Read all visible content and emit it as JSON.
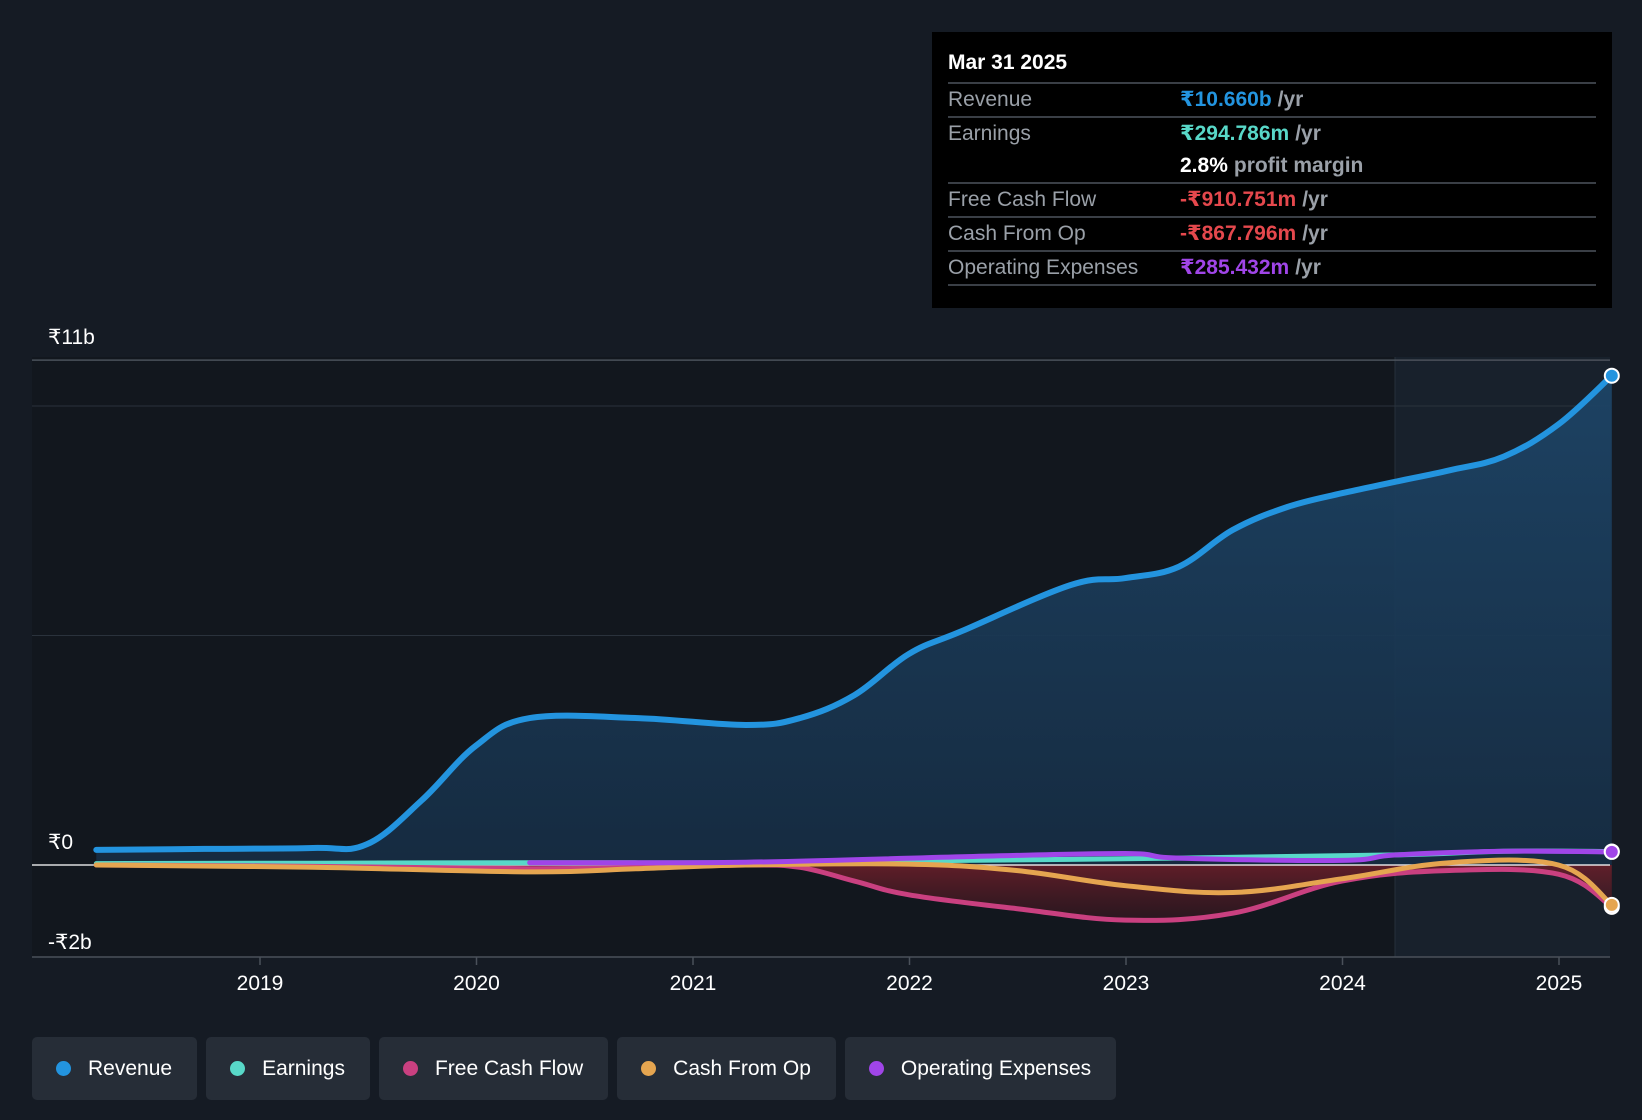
{
  "chart_data": {
    "type": "line",
    "y_ticks": [
      "₹11b",
      "₹0",
      "-₹2b"
    ],
    "x_ticks": [
      "2019",
      "2020",
      "2021",
      "2022",
      "2023",
      "2024",
      "2025"
    ],
    "ylim": [
      -2,
      11
    ],
    "series": [
      {
        "name": "Revenue",
        "color": "#2394df",
        "points": [
          [
            "2018-03-31",
            0.33
          ],
          [
            "2018-09-30",
            0.35
          ],
          [
            "2019-03-31",
            0.37
          ],
          [
            "2019-06-30",
            0.45
          ],
          [
            "2019-09-30",
            1.4
          ],
          [
            "2019-12-31",
            2.6
          ],
          [
            "2020-03-31",
            3.2
          ],
          [
            "2020-09-30",
            3.2
          ],
          [
            "2021-03-31",
            3.05
          ],
          [
            "2021-06-30",
            3.2
          ],
          [
            "2021-09-30",
            3.7
          ],
          [
            "2021-12-31",
            4.6
          ],
          [
            "2022-03-31",
            5.1
          ],
          [
            "2022-09-30",
            6.1
          ],
          [
            "2022-12-31",
            6.25
          ],
          [
            "2023-03-31",
            6.5
          ],
          [
            "2023-06-30",
            7.3
          ],
          [
            "2023-09-30",
            7.8
          ],
          [
            "2023-12-31",
            8.1
          ],
          [
            "2024-03-31",
            8.35
          ],
          [
            "2024-06-30",
            8.6
          ],
          [
            "2024-09-30",
            8.9
          ],
          [
            "2024-12-31",
            9.6
          ],
          [
            "2025-03-31",
            10.66
          ]
        ]
      },
      {
        "name": "Earnings",
        "color": "#58d8c8",
        "points": [
          [
            "2018-03-31",
            0.03
          ],
          [
            "2019-03-31",
            0.04
          ],
          [
            "2020-03-31",
            0.05
          ],
          [
            "2021-03-31",
            0.05
          ],
          [
            "2022-03-31",
            0.1
          ],
          [
            "2023-03-31",
            0.15
          ],
          [
            "2024-03-31",
            0.22
          ],
          [
            "2024-09-30",
            0.3
          ],
          [
            "2025-03-31",
            0.295
          ]
        ]
      },
      {
        "name": "Free Cash Flow",
        "color": "#c94080",
        "points": [
          [
            "2018-03-31",
            0.0
          ],
          [
            "2019-03-31",
            -0.03
          ],
          [
            "2020-03-31",
            -0.08
          ],
          [
            "2020-09-30",
            -0.05
          ],
          [
            "2021-03-31",
            0.0
          ],
          [
            "2021-06-30",
            -0.05
          ],
          [
            "2021-09-30",
            -0.35
          ],
          [
            "2021-12-31",
            -0.65
          ],
          [
            "2022-06-30",
            -0.95
          ],
          [
            "2022-12-31",
            -1.2
          ],
          [
            "2023-06-30",
            -1.05
          ],
          [
            "2023-12-31",
            -0.35
          ],
          [
            "2024-06-30",
            -0.12
          ],
          [
            "2024-12-31",
            -0.2
          ],
          [
            "2025-03-31",
            -0.911
          ]
        ]
      },
      {
        "name": "Cash From Op",
        "color": "#e5a550",
        "points": [
          [
            "2018-03-31",
            0.0
          ],
          [
            "2019-03-31",
            -0.05
          ],
          [
            "2020-03-31",
            -0.15
          ],
          [
            "2020-09-30",
            -0.08
          ],
          [
            "2021-03-31",
            0.0
          ],
          [
            "2021-12-31",
            0.02
          ],
          [
            "2022-06-30",
            -0.12
          ],
          [
            "2022-12-31",
            -0.45
          ],
          [
            "2023-06-30",
            -0.6
          ],
          [
            "2023-12-31",
            -0.3
          ],
          [
            "2024-06-30",
            0.05
          ],
          [
            "2024-12-31",
            0.0
          ],
          [
            "2025-03-31",
            -0.868
          ]
        ]
      },
      {
        "name": "Operating Expenses",
        "color": "#a045e8",
        "points": [
          [
            "2020-03-31",
            0.05
          ],
          [
            "2021-03-31",
            0.06
          ],
          [
            "2022-03-31",
            0.18
          ],
          [
            "2022-12-31",
            0.25
          ],
          [
            "2023-03-31",
            0.15
          ],
          [
            "2023-12-31",
            0.1
          ],
          [
            "2024-03-31",
            0.22
          ],
          [
            "2024-09-30",
            0.3
          ],
          [
            "2025-03-31",
            0.285
          ]
        ]
      }
    ],
    "tooltip": {
      "date": "Mar 31 2025",
      "rows": [
        {
          "label": "Revenue",
          "value": "₹10.660b",
          "unit": "/yr",
          "color": "#2394df"
        },
        {
          "label": "Earnings",
          "value": "₹294.786m",
          "unit": "/yr",
          "color": "#58d8c8"
        },
        {
          "label": "",
          "value": "2.8%",
          "unit": "profit margin",
          "color": "#ffffff"
        },
        {
          "label": "Free Cash Flow",
          "value": "-₹910.751m",
          "unit": "/yr",
          "color": "#e5484d"
        },
        {
          "label": "Cash From Op",
          "value": "-₹867.796m",
          "unit": "/yr",
          "color": "#e5484d"
        },
        {
          "label": "Operating Expenses",
          "value": "₹285.432m",
          "unit": "/yr",
          "color": "#a045e8"
        }
      ]
    },
    "legend": [
      {
        "label": "Revenue",
        "color": "#2394df"
      },
      {
        "label": "Earnings",
        "color": "#58d8c8"
      },
      {
        "label": "Free Cash Flow",
        "color": "#c94080"
      },
      {
        "label": "Cash From Op",
        "color": "#e5a550"
      },
      {
        "label": "Operating Expenses",
        "color": "#a045e8"
      }
    ]
  }
}
